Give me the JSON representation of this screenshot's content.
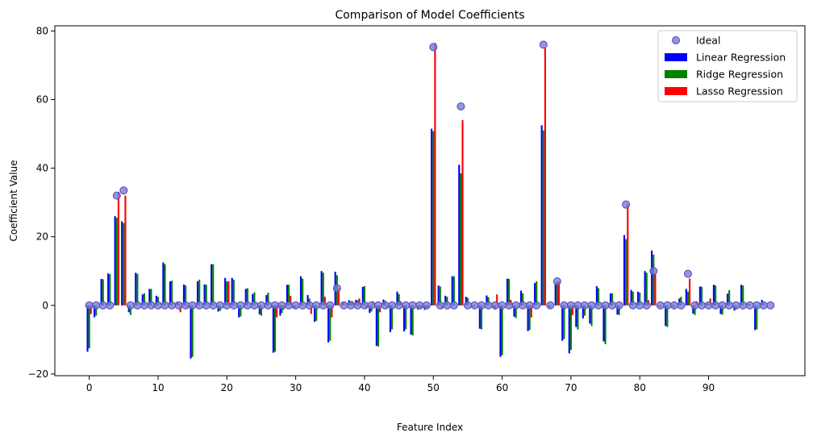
{
  "chart_data": {
    "type": "bar",
    "title": "Comparison of Model Coefficients",
    "xlabel": "Feature Index",
    "ylabel": "Coefficient Value",
    "xlim": [
      -5,
      104
    ],
    "ylim": [
      -20.5,
      81.5
    ],
    "xticks": [
      0,
      10,
      20,
      30,
      40,
      50,
      60,
      70,
      80,
      90
    ],
    "yticks": [
      -20,
      0,
      20,
      40,
      60,
      80
    ],
    "legend_position": "top-right",
    "grid": false,
    "colors": {
      "ideal": "#7b7bdc",
      "ideal_edge": "#4b4bb0",
      "linear": "#0000ff",
      "ridge": "#008000",
      "lasso": "#ff0000"
    },
    "series": [
      {
        "name": "Ideal",
        "style": "scatter",
        "values": [
          0,
          0,
          0,
          0,
          32,
          33.5,
          0,
          0,
          0,
          0,
          0,
          0,
          0,
          0,
          0,
          0,
          0,
          0,
          0,
          0,
          0,
          0,
          0,
          0,
          0,
          0,
          0,
          0,
          0,
          0,
          0,
          0,
          0,
          0,
          0,
          0,
          5,
          0,
          0,
          0,
          0,
          0,
          0,
          0,
          0,
          0,
          0,
          0,
          0,
          0,
          75.3,
          0,
          0,
          0,
          58,
          0,
          0,
          0,
          0,
          0,
          0,
          0,
          0,
          0,
          0,
          0,
          76,
          0,
          7,
          0,
          0,
          0,
          0,
          0,
          0,
          0,
          0,
          0,
          29.4,
          0,
          0,
          0,
          10,
          0,
          0,
          0,
          0,
          9.2,
          0,
          0,
          0,
          0,
          0,
          0,
          0,
          0,
          0,
          0,
          0,
          0
        ]
      },
      {
        "name": "Linear Regression",
        "style": "bar",
        "values": [
          -13.5,
          -3.5,
          7.7,
          9.3,
          26,
          24.5,
          -2,
          9.5,
          3.2,
          4.8,
          2.8,
          12.5,
          7,
          1,
          6.1,
          -15.5,
          7,
          6.1,
          12,
          -1.8,
          8,
          8,
          -3.5,
          4.8,
          3.3,
          -2.6,
          3,
          -13.8,
          -3,
          6,
          -1,
          8.5,
          3,
          -4.8,
          10,
          -10.8,
          9.8,
          0.8,
          1.5,
          1.6,
          5.4,
          -2.2,
          -11.8,
          1.7,
          -7.8,
          4,
          -7.6,
          -8.5,
          -1.2,
          -1.3,
          51.5,
          5.8,
          2.8,
          8.5,
          41,
          2.5,
          -0.5,
          -6.8,
          2.9,
          -0.8,
          -15,
          7.8,
          -3.3,
          4.3,
          -7.5,
          6.5,
          52.5,
          -0.5,
          6.5,
          -10.3,
          -14,
          -6.3,
          -3.8,
          -5.3,
          5.6,
          -10.5,
          3.5,
          -2.7,
          20.5,
          4.5,
          4,
          10,
          16,
          -0.3,
          -6,
          -0.4,
          2,
          4.8,
          -2.4,
          5.5,
          0.6,
          6,
          -2.5,
          3.4,
          -1.5,
          6,
          0.4,
          -7.2,
          1.6,
          0
        ]
      },
      {
        "name": "Ridge Regression",
        "style": "bar",
        "values": [
          -12.5,
          -3,
          7.6,
          9.1,
          25.5,
          24,
          -2.8,
          9.2,
          3.5,
          4.8,
          2.5,
          12,
          7.2,
          0.6,
          5.8,
          -15,
          7.5,
          6,
          12,
          -1.6,
          7,
          7.5,
          -3.2,
          5,
          3.8,
          -3,
          3.7,
          -13.5,
          -2.2,
          6,
          -0.6,
          7.8,
          2,
          -4.5,
          9.5,
          -10.3,
          8.8,
          0.9,
          1.2,
          1.5,
          5.6,
          -1.8,
          -12,
          1.3,
          -7,
          3.3,
          -7,
          -8.8,
          -0.8,
          -0.8,
          50.8,
          5.5,
          2.5,
          8.5,
          38.5,
          2.2,
          -0.4,
          -7,
          2.4,
          -1.2,
          -14.5,
          7.7,
          -3.7,
          3.5,
          -7.2,
          7,
          51,
          -0.8,
          7,
          -9.8,
          -13,
          -7,
          -3,
          -6,
          5,
          -11.3,
          3.5,
          -2.8,
          19.3,
          4,
          3.7,
          9.5,
          14.8,
          -0.6,
          -6.3,
          -0.6,
          2.5,
          4,
          -2.8,
          5.4,
          0.5,
          5.8,
          -2.7,
          4.4,
          -1,
          5.8,
          0.4,
          -7,
          1,
          0
        ]
      },
      {
        "name": "Lasso Regression",
        "style": "bar",
        "values": [
          -2.5,
          0,
          0,
          0,
          33,
          32,
          0,
          0,
          0,
          -0.7,
          0,
          0,
          0,
          -2,
          -0.8,
          0,
          0,
          0,
          0,
          0,
          7,
          0,
          0,
          0,
          0,
          0,
          0,
          -3.5,
          -1.2,
          2.8,
          0,
          0,
          -2.5,
          0,
          2.5,
          -3.5,
          5,
          0,
          1.2,
          2,
          -1,
          1.2,
          -2,
          -1,
          0,
          1.2,
          0,
          0,
          -1,
          -0.8,
          76.5,
          -1,
          0,
          0,
          54,
          0,
          0,
          0,
          0,
          3.2,
          0,
          1.6,
          0,
          0,
          -3.5,
          0,
          75,
          0,
          7,
          0,
          -2.8,
          0,
          0,
          0,
          0,
          0,
          0,
          0,
          29.5,
          0,
          0,
          1.5,
          9,
          0,
          0,
          0,
          0,
          7.8,
          1.2,
          0,
          2,
          0,
          0,
          0,
          0,
          0,
          0,
          0,
          0,
          0
        ]
      }
    ]
  }
}
